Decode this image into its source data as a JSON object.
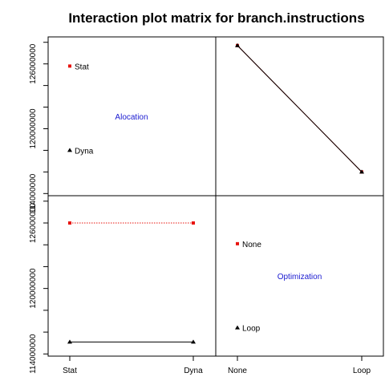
{
  "chart_data": {
    "type": "line",
    "title": "Interaction plot matrix for branch.instructions",
    "factors": [
      {
        "name": "Alocation",
        "levels": [
          "Stat",
          "Dyna"
        ]
      },
      {
        "name": "Optimization",
        "levels": [
          "None",
          "Loop"
        ]
      }
    ],
    "y_axis": {
      "ylim": [
        113800000,
        128500000
      ],
      "ticks": [
        114000000,
        116000000,
        118000000,
        120000000,
        122000000,
        124000000,
        126000000,
        128000000
      ],
      "tick_labels": [
        "114000000",
        "",
        "",
        "120000000",
        "",
        "",
        "126000000",
        ""
      ]
    },
    "series_colors": [
      "#000000",
      "#e8140f"
    ],
    "top_left": {
      "kind": "level-means",
      "labels": [
        "Stat",
        "Dyna"
      ],
      "values": [
        125800000,
        118000000
      ],
      "marker_colors": [
        "#e8140f",
        "#000000"
      ],
      "factor_label": "Alocation"
    },
    "top_right": {
      "kind": "interaction",
      "x_levels": [
        "None",
        "Loop"
      ],
      "series": [
        {
          "trace_level": "Stat",
          "values": [
            127700000,
            116000000
          ]
        },
        {
          "trace_level": "Dyna",
          "values": [
            127700000,
            116000000
          ]
        }
      ]
    },
    "bottom_left": {
      "kind": "interaction",
      "x_levels": [
        "Stat",
        "Dyna"
      ],
      "series": [
        {
          "trace_level": "Loop",
          "values": [
            115100000,
            115100000
          ]
        },
        {
          "trace_level": "None",
          "values": [
            126000000,
            126000000
          ]
        }
      ]
    },
    "bottom_right": {
      "kind": "level-means",
      "labels": [
        "None",
        "Loop"
      ],
      "values": [
        124100000,
        116400000
      ],
      "marker_colors": [
        "#e8140f",
        "#000000"
      ],
      "factor_label": "Optimization"
    },
    "x_axis_labels": {
      "left": [
        "Stat",
        "Dyna"
      ],
      "right": [
        "None",
        "Loop"
      ]
    }
  }
}
